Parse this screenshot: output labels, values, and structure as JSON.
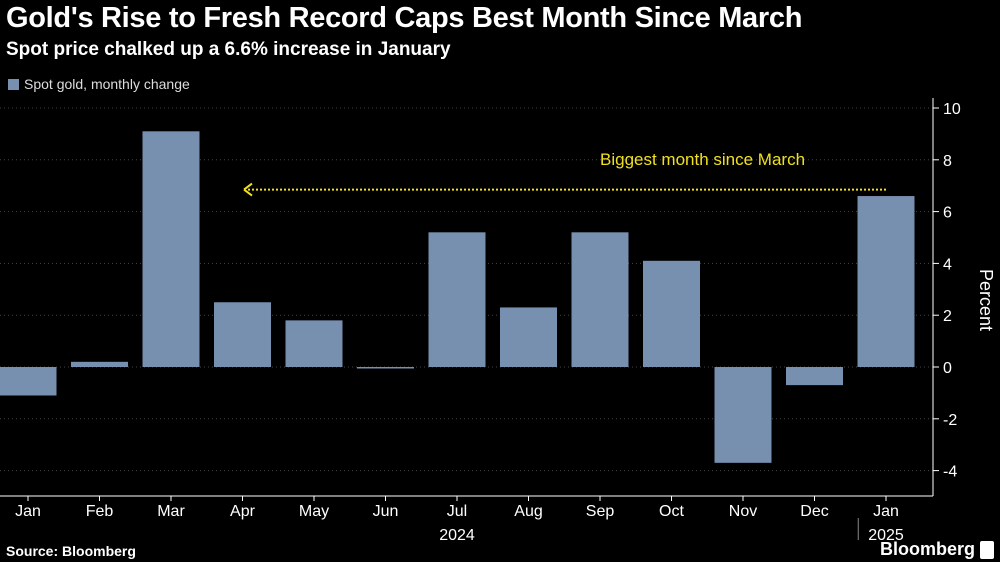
{
  "title": "Gold's Rise to Fresh Record Caps Best Month Since March",
  "subtitle": "Spot price chalked up a 6.6% increase in January",
  "source": "Source: Bloomberg",
  "logo": "Bloomberg",
  "chart_data": {
    "type": "bar",
    "legend": [
      "Spot gold, monthly change"
    ],
    "categories": [
      "Jan",
      "Feb",
      "Mar",
      "Apr",
      "May",
      "Jun",
      "Jul",
      "Aug",
      "Sep",
      "Oct",
      "Nov",
      "Dec",
      "Jan"
    ],
    "year_labels": [
      "2024",
      "2025"
    ],
    "values": [
      -1.1,
      0.2,
      9.1,
      2.5,
      1.8,
      -0.05,
      5.2,
      2.3,
      5.2,
      4.1,
      -3.7,
      -0.7,
      6.6
    ],
    "ylabel": "Percent",
    "ylim": [
      -4.9,
      10.9
    ],
    "yticks": [
      -4,
      -2,
      0,
      2,
      4,
      6,
      8,
      10
    ],
    "annotation": "Biggest month since March",
    "bar_color": "#7890b0",
    "annotation_color": "#f0e020"
  }
}
